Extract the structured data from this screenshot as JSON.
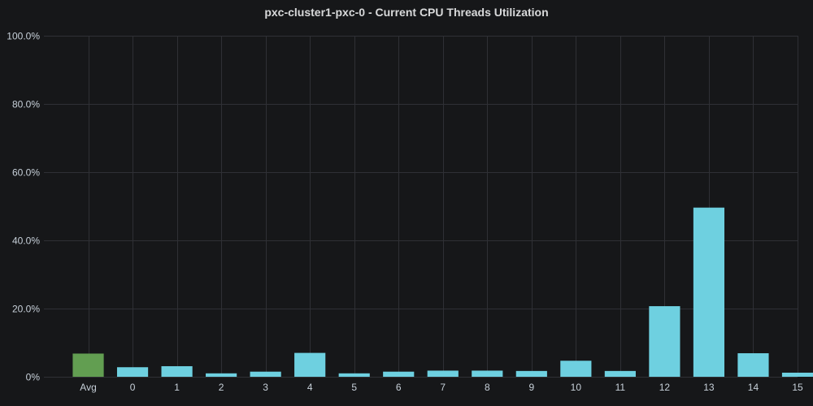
{
  "panel": {
    "title": "pxc-cluster1-pxc-0 - Current CPU Threads Utilization"
  },
  "colors": {
    "background": "#161719",
    "grid": "#2f3035",
    "axis_text": "#c7d0d9",
    "avg_bar": "#629e51",
    "thread_bar": "#6ed0e0"
  },
  "chart_data": {
    "type": "bar",
    "title": "pxc-cluster1-pxc-0 - Current CPU Threads Utilization",
    "xlabel": "",
    "ylabel": "",
    "categories": [
      "Avg",
      "0",
      "1",
      "2",
      "3",
      "4",
      "5",
      "6",
      "7",
      "8",
      "9",
      "10",
      "11",
      "12",
      "13",
      "14",
      "15"
    ],
    "values": [
      6.8,
      2.8,
      3.1,
      1.0,
      1.5,
      7.0,
      1.0,
      1.5,
      1.8,
      1.8,
      1.7,
      4.7,
      1.7,
      20.7,
      49.6,
      6.9,
      1.2
    ],
    "bar_colors": [
      "#629e51",
      "#6ed0e0",
      "#6ed0e0",
      "#6ed0e0",
      "#6ed0e0",
      "#6ed0e0",
      "#6ed0e0",
      "#6ed0e0",
      "#6ed0e0",
      "#6ed0e0",
      "#6ed0e0",
      "#6ed0e0",
      "#6ed0e0",
      "#6ed0e0",
      "#6ed0e0",
      "#6ed0e0",
      "#6ed0e0"
    ],
    "ylim": [
      0,
      100
    ],
    "yticks": [
      0,
      20,
      40,
      60,
      80,
      100
    ],
    "ytick_labels": [
      "0%",
      "20.0%",
      "40.0%",
      "60.0%",
      "80.0%",
      "100.0%"
    ],
    "grid": true,
    "legend": "none"
  }
}
